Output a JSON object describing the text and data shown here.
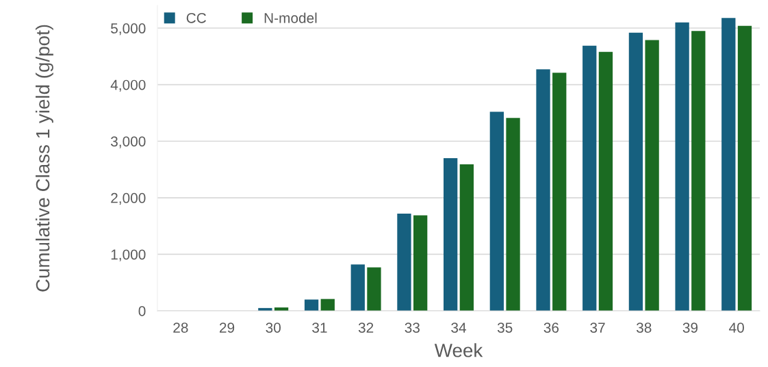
{
  "chart_data": {
    "type": "bar",
    "xlabel": "Week",
    "ylabel": "Cumulative Class 1 yield (g/pot)",
    "categories": [
      "28",
      "29",
      "30",
      "31",
      "32",
      "33",
      "34",
      "35",
      "36",
      "37",
      "38",
      "39",
      "40"
    ],
    "series": [
      {
        "name": "CC",
        "color": "#16607f",
        "values": [
          0,
          0,
          50,
          200,
          820,
          1720,
          2700,
          3520,
          4270,
          4690,
          4920,
          5100,
          5180
        ]
      },
      {
        "name": "N-model",
        "color": "#1b6b22",
        "values": [
          0,
          0,
          60,
          210,
          770,
          1690,
          2590,
          3410,
          4210,
          4580,
          4790,
          4950,
          5040
        ]
      }
    ],
    "ylim": [
      0,
      5400
    ],
    "yticks": [
      {
        "value": 0,
        "label": "0"
      },
      {
        "value": 1000,
        "label": "1,000"
      },
      {
        "value": 2000,
        "label": "2,000"
      },
      {
        "value": 3000,
        "label": "3,000"
      },
      {
        "value": 4000,
        "label": "4,000"
      },
      {
        "value": 5000,
        "label": "5,000"
      }
    ],
    "grid": "y",
    "legend": "top left"
  }
}
